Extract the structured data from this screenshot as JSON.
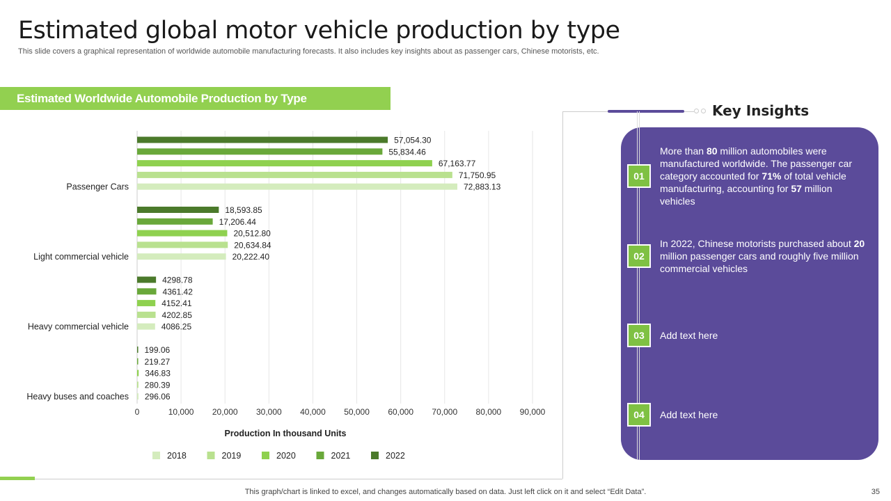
{
  "title": "Estimated global motor vehicle production by type",
  "subtitle": "This slide covers a graphical representation of worldwide automobile manufacturing forecasts. It also includes key insights about as passenger cars, Chinese motorists, etc.",
  "section_title": "Estimated Worldwide Automobile Production by Type",
  "key_insights": {
    "title": "Key Insights",
    "items": [
      {
        "num": "01",
        "html": "More than <b>80</b> million automobiles were manufactured worldwide. The passenger car category accounted for <b>71%</b> of total vehicle manufacturing, accounting for <b>57</b> million vehicles"
      },
      {
        "num": "02",
        "html": "In 2022, Chinese motorists purchased about <b>20</b> million passenger cars and roughly five million commercial vehicles"
      },
      {
        "num": "03",
        "html": "Add text here"
      },
      {
        "num": "04",
        "html": "Add text here"
      }
    ]
  },
  "footer": "This graph/chart is linked to excel,  and changes automatically based on data. Just left click on it and select “Edit Data”.",
  "page_number": "35",
  "chart_data": {
    "type": "bar",
    "orientation": "horizontal",
    "categories": [
      "Passenger Cars",
      "Light commercial vehicle",
      "Heavy commercial vehicle",
      "Heavy buses and coaches"
    ],
    "series": [
      {
        "name": "2018",
        "color": "#d4ecbd",
        "values": [
          72883.13,
          20222.4,
          4086.25,
          296.06
        ],
        "labels": [
          "72,883.13",
          "20,222.40",
          "4086.25",
          "296.06"
        ]
      },
      {
        "name": "2019",
        "color": "#b9e18f",
        "values": [
          71750.95,
          20634.84,
          4202.85,
          280.39
        ],
        "labels": [
          "71,750.95",
          "20,634.84",
          "4202.85",
          "280.39"
        ]
      },
      {
        "name": "2020",
        "color": "#8fd14f",
        "values": [
          67163.77,
          20512.8,
          4152.41,
          346.83
        ],
        "labels": [
          "67,163.77",
          "20,512.80",
          "4152.41",
          "346.83"
        ]
      },
      {
        "name": "2021",
        "color": "#69a83a",
        "values": [
          55834.46,
          17206.44,
          4361.42,
          219.27
        ],
        "labels": [
          "55,834.46",
          "17,206.44",
          "4361.42",
          "219.27"
        ]
      },
      {
        "name": "2022",
        "color": "#4b7a2b",
        "values": [
          57054.3,
          18593.85,
          4298.78,
          199.06
        ],
        "labels": [
          "57,054.30",
          "18,593.85",
          "4298.78",
          "199.06"
        ]
      }
    ],
    "xticks": [
      "0",
      "10,000",
      "20,000",
      "30,000",
      "40,000",
      "50,000",
      "60,000",
      "70,000",
      "80,000",
      "90,000"
    ],
    "xlim": [
      0,
      90000
    ],
    "xlabel": "Production In thousand Units",
    "legend": "bottom",
    "grid": true
  }
}
